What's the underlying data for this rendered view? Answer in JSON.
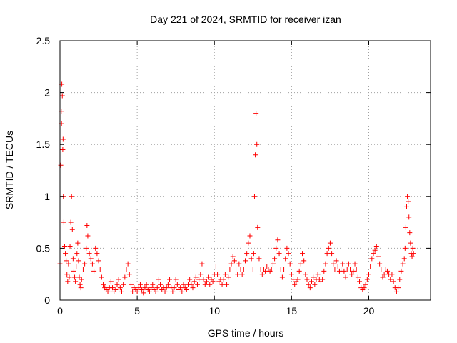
{
  "chart_data": {
    "type": "scatter",
    "title": "Day 221 of 2024, SRMTID for receiver izan",
    "xlabel": "GPS time / hours",
    "ylabel": "SRMTID / TECUs",
    "xlim": [
      0,
      24
    ],
    "ylim": [
      0,
      2.5
    ],
    "xticks": [
      0,
      5,
      10,
      15,
      20
    ],
    "xtick_labels": [
      "0",
      "5",
      "10",
      "15",
      "20"
    ],
    "yticks": [
      0,
      0.5,
      1,
      1.5,
      2,
      2.5
    ],
    "ytick_labels": [
      "0",
      "0.5",
      "1",
      "1.5",
      "2",
      "2.5"
    ],
    "grid": true,
    "marker": "+",
    "series": [
      {
        "name": "SRMTID",
        "color": "#ff0000",
        "points": [
          [
            0.0,
            0.35
          ],
          [
            0.05,
            1.3
          ],
          [
            0.08,
            1.82
          ],
          [
            0.1,
            1.7
          ],
          [
            0.12,
            2.08
          ],
          [
            0.15,
            1.97
          ],
          [
            0.18,
            1.45
          ],
          [
            0.2,
            1.55
          ],
          [
            0.22,
            1.0
          ],
          [
            0.25,
            0.75
          ],
          [
            0.3,
            0.52
          ],
          [
            0.35,
            0.45
          ],
          [
            0.4,
            0.38
          ],
          [
            0.45,
            0.25
          ],
          [
            0.5,
            0.18
          ],
          [
            0.55,
            0.35
          ],
          [
            0.6,
            0.22
          ],
          [
            0.65,
            0.52
          ],
          [
            0.7,
            0.75
          ],
          [
            0.75,
            1.0
          ],
          [
            0.8,
            0.68
          ],
          [
            0.85,
            0.4
          ],
          [
            0.9,
            0.28
          ],
          [
            0.95,
            0.22
          ],
          [
            1.0,
            0.18
          ],
          [
            1.05,
            0.32
          ],
          [
            1.1,
            0.45
          ],
          [
            1.15,
            0.55
          ],
          [
            1.2,
            0.38
          ],
          [
            1.25,
            0.22
          ],
          [
            1.3,
            0.15
          ],
          [
            1.35,
            0.12
          ],
          [
            1.4,
            0.2
          ],
          [
            1.5,
            0.3
          ],
          [
            1.6,
            0.35
          ],
          [
            1.7,
            0.5
          ],
          [
            1.75,
            0.72
          ],
          [
            1.8,
            0.62
          ],
          [
            1.9,
            0.45
          ],
          [
            2.0,
            0.4
          ],
          [
            2.1,
            0.35
          ],
          [
            2.2,
            0.28
          ],
          [
            2.3,
            0.5
          ],
          [
            2.4,
            0.45
          ],
          [
            2.5,
            0.38
          ],
          [
            2.6,
            0.3
          ],
          [
            2.7,
            0.22
          ],
          [
            2.8,
            0.15
          ],
          [
            2.9,
            0.12
          ],
          [
            3.0,
            0.1
          ],
          [
            3.1,
            0.08
          ],
          [
            3.2,
            0.12
          ],
          [
            3.3,
            0.18
          ],
          [
            3.4,
            0.12
          ],
          [
            3.5,
            0.08
          ],
          [
            3.6,
            0.1
          ],
          [
            3.7,
            0.15
          ],
          [
            3.8,
            0.2
          ],
          [
            3.9,
            0.12
          ],
          [
            4.0,
            0.08
          ],
          [
            4.1,
            0.15
          ],
          [
            4.2,
            0.22
          ],
          [
            4.3,
            0.3
          ],
          [
            4.4,
            0.35
          ],
          [
            4.5,
            0.25
          ],
          [
            4.6,
            0.15
          ],
          [
            4.7,
            0.08
          ],
          [
            4.8,
            0.12
          ],
          [
            4.9,
            0.1
          ],
          [
            5.0,
            0.08
          ],
          [
            5.1,
            0.12
          ],
          [
            5.2,
            0.15
          ],
          [
            5.3,
            0.1
          ],
          [
            5.4,
            0.07
          ],
          [
            5.5,
            0.12
          ],
          [
            5.6,
            0.15
          ],
          [
            5.7,
            0.1
          ],
          [
            5.8,
            0.08
          ],
          [
            5.9,
            0.12
          ],
          [
            6.0,
            0.15
          ],
          [
            6.1,
            0.1
          ],
          [
            6.2,
            0.08
          ],
          [
            6.3,
            0.12
          ],
          [
            6.4,
            0.2
          ],
          [
            6.5,
            0.15
          ],
          [
            6.6,
            0.1
          ],
          [
            6.7,
            0.12
          ],
          [
            6.8,
            0.08
          ],
          [
            6.9,
            0.12
          ],
          [
            7.0,
            0.15
          ],
          [
            7.1,
            0.2
          ],
          [
            7.2,
            0.12
          ],
          [
            7.3,
            0.08
          ],
          [
            7.4,
            0.12
          ],
          [
            7.5,
            0.2
          ],
          [
            7.6,
            0.15
          ],
          [
            7.7,
            0.1
          ],
          [
            7.8,
            0.12
          ],
          [
            7.9,
            0.08
          ],
          [
            8.0,
            0.15
          ],
          [
            8.1,
            0.12
          ],
          [
            8.2,
            0.1
          ],
          [
            8.3,
            0.15
          ],
          [
            8.4,
            0.2
          ],
          [
            8.5,
            0.15
          ],
          [
            8.6,
            0.12
          ],
          [
            8.7,
            0.18
          ],
          [
            8.8,
            0.22
          ],
          [
            8.9,
            0.15
          ],
          [
            9.0,
            0.2
          ],
          [
            9.1,
            0.25
          ],
          [
            9.2,
            0.35
          ],
          [
            9.3,
            0.2
          ],
          [
            9.4,
            0.15
          ],
          [
            9.5,
            0.18
          ],
          [
            9.6,
            0.22
          ],
          [
            9.7,
            0.15
          ],
          [
            9.8,
            0.2
          ],
          [
            9.9,
            0.18
          ],
          [
            10.0,
            0.25
          ],
          [
            10.1,
            0.32
          ],
          [
            10.2,
            0.25
          ],
          [
            10.3,
            0.18
          ],
          [
            10.4,
            0.2
          ],
          [
            10.5,
            0.15
          ],
          [
            10.6,
            0.2
          ],
          [
            10.7,
            0.25
          ],
          [
            10.8,
            0.15
          ],
          [
            10.9,
            0.22
          ],
          [
            11.0,
            0.3
          ],
          [
            11.1,
            0.35
          ],
          [
            11.2,
            0.42
          ],
          [
            11.3,
            0.38
          ],
          [
            11.4,
            0.3
          ],
          [
            11.5,
            0.25
          ],
          [
            11.6,
            0.35
          ],
          [
            11.7,
            0.3
          ],
          [
            11.8,
            0.25
          ],
          [
            11.9,
            0.3
          ],
          [
            12.0,
            0.38
          ],
          [
            12.1,
            0.45
          ],
          [
            12.2,
            0.55
          ],
          [
            12.3,
            0.62
          ],
          [
            12.4,
            0.4
          ],
          [
            12.5,
            0.3
          ],
          [
            12.55,
            0.45
          ],
          [
            12.6,
            1.0
          ],
          [
            12.65,
            1.4
          ],
          [
            12.7,
            1.8
          ],
          [
            12.75,
            1.5
          ],
          [
            12.8,
            0.7
          ],
          [
            12.9,
            0.4
          ],
          [
            13.0,
            0.3
          ],
          [
            13.1,
            0.25
          ],
          [
            13.2,
            0.3
          ],
          [
            13.3,
            0.28
          ],
          [
            13.4,
            0.32
          ],
          [
            13.5,
            0.3
          ],
          [
            13.6,
            0.28
          ],
          [
            13.7,
            0.3
          ],
          [
            13.8,
            0.35
          ],
          [
            13.9,
            0.4
          ],
          [
            14.0,
            0.5
          ],
          [
            14.1,
            0.58
          ],
          [
            14.2,
            0.45
          ],
          [
            14.3,
            0.3
          ],
          [
            14.4,
            0.22
          ],
          [
            14.5,
            0.3
          ],
          [
            14.6,
            0.4
          ],
          [
            14.7,
            0.5
          ],
          [
            14.8,
            0.45
          ],
          [
            14.9,
            0.35
          ],
          [
            15.0,
            0.25
          ],
          [
            15.1,
            0.2
          ],
          [
            15.2,
            0.15
          ],
          [
            15.3,
            0.18
          ],
          [
            15.4,
            0.2
          ],
          [
            15.5,
            0.28
          ],
          [
            15.6,
            0.35
          ],
          [
            15.7,
            0.45
          ],
          [
            15.8,
            0.38
          ],
          [
            15.9,
            0.25
          ],
          [
            16.0,
            0.2
          ],
          [
            16.1,
            0.15
          ],
          [
            16.2,
            0.12
          ],
          [
            16.3,
            0.18
          ],
          [
            16.4,
            0.22
          ],
          [
            16.5,
            0.15
          ],
          [
            16.6,
            0.2
          ],
          [
            16.7,
            0.25
          ],
          [
            16.8,
            0.2
          ],
          [
            16.9,
            0.18
          ],
          [
            17.0,
            0.2
          ],
          [
            17.1,
            0.28
          ],
          [
            17.2,
            0.35
          ],
          [
            17.3,
            0.45
          ],
          [
            17.4,
            0.5
          ],
          [
            17.5,
            0.55
          ],
          [
            17.6,
            0.45
          ],
          [
            17.7,
            0.35
          ],
          [
            17.8,
            0.3
          ],
          [
            17.9,
            0.38
          ],
          [
            18.0,
            0.32
          ],
          [
            18.1,
            0.28
          ],
          [
            18.2,
            0.3
          ],
          [
            18.3,
            0.35
          ],
          [
            18.4,
            0.28
          ],
          [
            18.5,
            0.22
          ],
          [
            18.6,
            0.3
          ],
          [
            18.7,
            0.35
          ],
          [
            18.8,
            0.3
          ],
          [
            18.9,
            0.25
          ],
          [
            19.0,
            0.28
          ],
          [
            19.1,
            0.35
          ],
          [
            19.2,
            0.3
          ],
          [
            19.3,
            0.22
          ],
          [
            19.4,
            0.18
          ],
          [
            19.5,
            0.12
          ],
          [
            19.6,
            0.1
          ],
          [
            19.7,
            0.12
          ],
          [
            19.8,
            0.15
          ],
          [
            19.9,
            0.2
          ],
          [
            20.0,
            0.25
          ],
          [
            20.1,
            0.32
          ],
          [
            20.2,
            0.4
          ],
          [
            20.3,
            0.45
          ],
          [
            20.4,
            0.48
          ],
          [
            20.5,
            0.52
          ],
          [
            20.6,
            0.42
          ],
          [
            20.7,
            0.35
          ],
          [
            20.8,
            0.3
          ],
          [
            20.9,
            0.22
          ],
          [
            21.0,
            0.25
          ],
          [
            21.1,
            0.3
          ],
          [
            21.2,
            0.28
          ],
          [
            21.3,
            0.25
          ],
          [
            21.4,
            0.2
          ],
          [
            21.5,
            0.25
          ],
          [
            21.6,
            0.18
          ],
          [
            21.7,
            0.12
          ],
          [
            21.8,
            0.08
          ],
          [
            21.9,
            0.12
          ],
          [
            22.0,
            0.2
          ],
          [
            22.1,
            0.28
          ],
          [
            22.2,
            0.35
          ],
          [
            22.3,
            0.4
          ],
          [
            22.35,
            0.5
          ],
          [
            22.4,
            0.7
          ],
          [
            22.45,
            0.9
          ],
          [
            22.5,
            1.0
          ],
          [
            22.55,
            0.95
          ],
          [
            22.6,
            0.8
          ],
          [
            22.65,
            0.65
          ],
          [
            22.7,
            0.55
          ],
          [
            22.75,
            0.45
          ],
          [
            22.8,
            0.42
          ],
          [
            22.85,
            0.5
          ],
          [
            22.9,
            0.45
          ]
        ]
      }
    ]
  }
}
